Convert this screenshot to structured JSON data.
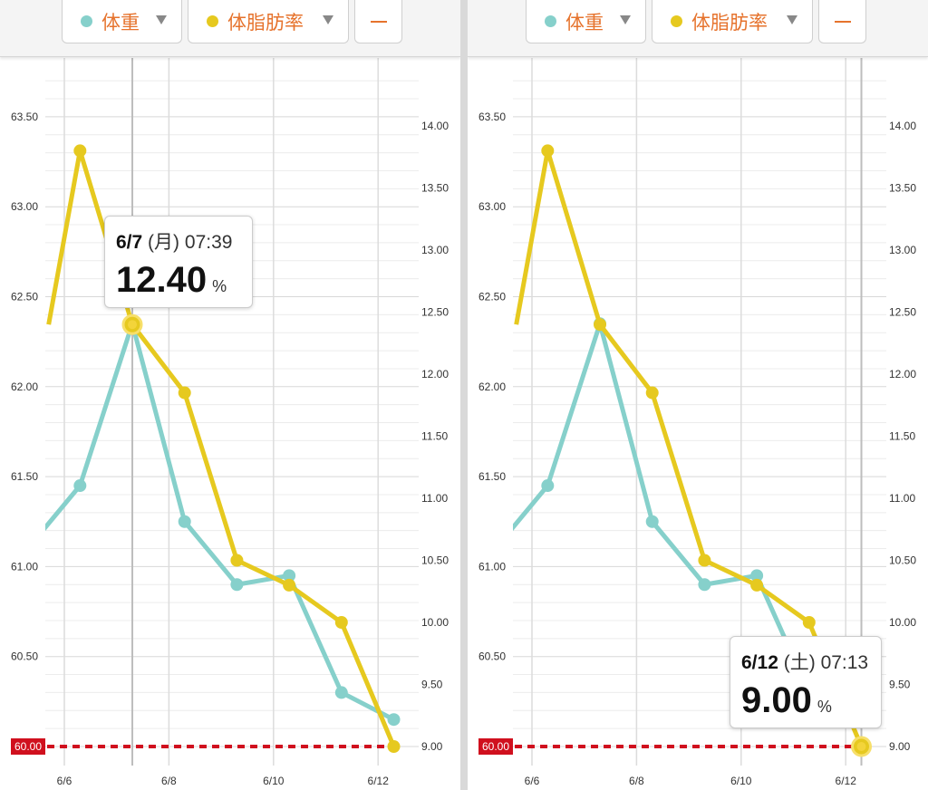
{
  "colors": {
    "weight": "#86d0cb",
    "fat": "#e6c91f",
    "accent": "#e6732d",
    "target": "#d0101e"
  },
  "selectors": {
    "weight_label": "体重",
    "fat_label": "体脂肪率",
    "minus_label": "—"
  },
  "panels": [
    {
      "tooltip": {
        "date": "6/7",
        "day": "(月)",
        "time": "07:39",
        "int": "12",
        "dec": ".40",
        "unit": "%"
      }
    },
    {
      "tooltip": {
        "date": "6/12",
        "day": "(土)",
        "time": "07:13",
        "int": "9",
        "dec": ".00",
        "unit": "%"
      }
    }
  ],
  "chart_data": {
    "type": "line",
    "x_ticks": [
      "6/6",
      "6/8",
      "6/10",
      "6/12"
    ],
    "left_axis": {
      "ticks": [
        "60.50",
        "61.00",
        "61.50",
        "62.00",
        "62.50",
        "63.00",
        "63.50"
      ],
      "range": [
        59.97,
        63.75
      ]
    },
    "right_axis": {
      "ticks": [
        "9.00",
        "9.50",
        "10.00",
        "10.50",
        "11.00",
        "11.50",
        "12.00",
        "12.50",
        "13.00",
        "13.50",
        "14.00"
      ],
      "range": [
        8.99,
        14.5
      ]
    },
    "target_line": {
      "value": 60.0,
      "label": "60.00"
    },
    "series": [
      {
        "axis": "left",
        "x": [
          5.0,
          5.3,
          6.3,
          7.3,
          8.3,
          9.3,
          10.3,
          11.3,
          12.3
        ],
        "values": [
          60.7,
          61.1,
          61.45,
          62.35,
          61.25,
          60.9,
          60.95,
          60.3,
          60.15
        ]
      },
      {
        "axis": "right",
        "x": [
          5.7,
          6.3,
          7.3,
          8.3,
          9.3,
          10.3,
          11.3,
          12.3
        ],
        "values": [
          12.4,
          13.8,
          12.4,
          11.85,
          10.5,
          10.3,
          10.0,
          9.0
        ]
      }
    ],
    "highlights": [
      {
        "panel": 0,
        "series": 1,
        "x": 7.3,
        "value": 12.4
      },
      {
        "panel": 1,
        "series": 1,
        "x": 12.3,
        "value": 9.0
      }
    ]
  }
}
